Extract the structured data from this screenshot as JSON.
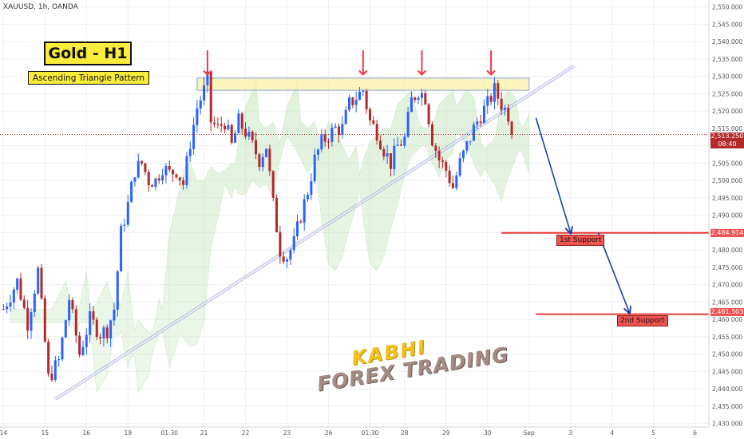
{
  "header": {
    "ticker": "XAUUSD, 1h, OANDA"
  },
  "annotations": {
    "title": "Gold - H1",
    "subtitle": "Ascending Triangle Pattern",
    "support1_label": "1st Support",
    "support2_label": "2nd Support",
    "watermark_line1": "KABHI",
    "watermark_line2": "FOREX TRADING"
  },
  "price_tags": {
    "current": "2,513.250",
    "countdown": "08:40",
    "support1": "2,484.914",
    "support2": "2,461.503"
  },
  "chart_data": {
    "type": "candlestick",
    "y_ticks": [
      "2,550.000",
      "2,545.000",
      "2,540.000",
      "2,535.000",
      "2,530.000",
      "2,525.000",
      "2,520.000",
      "2,515.000",
      "2,510.000",
      "2,505.000",
      "2,500.000",
      "2,495.000",
      "2,490.000",
      "2,485.000",
      "2,480.000",
      "2,475.000",
      "2,470.000",
      "2,465.000",
      "2,460.000",
      "2,455.000",
      "2,450.000",
      "2,445.000",
      "2,440.000",
      "2,435.000",
      "2,430.000"
    ],
    "y_values": [
      2550,
      2545,
      2540,
      2535,
      2530,
      2525,
      2520,
      2515,
      2510,
      2505,
      2500,
      2495,
      2490,
      2485,
      2480,
      2475,
      2470,
      2465,
      2460,
      2455,
      2450,
      2445,
      2440,
      2435,
      2430
    ],
    "ylim": [
      2429,
      2552
    ],
    "x_ticks": [
      {
        "label": "14",
        "i": 0
      },
      {
        "label": "15",
        "i": 12
      },
      {
        "label": "16",
        "i": 24
      },
      {
        "label": "19",
        "i": 36
      },
      {
        "label": "01:30",
        "i": 48
      },
      {
        "label": "21",
        "i": 58
      },
      {
        "label": "22",
        "i": 70
      },
      {
        "label": "23",
        "i": 82
      },
      {
        "label": "26",
        "i": 94
      },
      {
        "label": "01:30",
        "i": 106
      },
      {
        "label": "28",
        "i": 116
      },
      {
        "label": "29",
        "i": 128
      },
      {
        "label": "30",
        "i": 140
      },
      {
        "label": "Sep",
        "i": 152
      },
      {
        "label": "3",
        "i": 164
      },
      {
        "label": "4",
        "i": 176
      },
      {
        "label": "5",
        "i": 188
      },
      {
        "label": "6",
        "i": 200
      }
    ],
    "current_price": 2513.25,
    "resistance_zone": [
      2526,
      2529.5
    ],
    "trendline": [
      {
        "i": 15,
        "price": 2437
      },
      {
        "i": 165,
        "price": 2533
      }
    ],
    "supports": [
      {
        "price": 2484.914,
        "from_i": 144
      },
      {
        "price": 2461.503,
        "from_i": 154
      }
    ],
    "top_arrows_i": [
      59,
      104,
      121,
      141
    ],
    "projection_path": [
      {
        "i": 154,
        "price": 2518
      },
      {
        "i": 164,
        "price": 2485
      },
      {
        "i": 172,
        "price": 2485
      },
      {
        "i": 181,
        "price": 2462
      }
    ],
    "close_path": [
      [
        0,
        2463
      ],
      [
        4,
        2471
      ],
      [
        7,
        2459
      ],
      [
        10,
        2474
      ],
      [
        13,
        2443
      ],
      [
        16,
        2448
      ],
      [
        19,
        2466
      ],
      [
        22,
        2450
      ],
      [
        25,
        2460
      ],
      [
        28,
        2456
      ],
      [
        30,
        2457
      ],
      [
        32,
        2463
      ],
      [
        34,
        2485
      ],
      [
        36,
        2493
      ],
      [
        38,
        2503
      ],
      [
        40,
        2505
      ],
      [
        42,
        2500
      ],
      [
        44,
        2500
      ],
      [
        46,
        2504
      ],
      [
        48,
        2502
      ],
      [
        50,
        2503
      ],
      [
        52,
        2499
      ],
      [
        54,
        2511
      ],
      [
        56,
        2521
      ],
      [
        58,
        2526
      ],
      [
        59,
        2529
      ],
      [
        60,
        2517
      ],
      [
        62,
        2515
      ],
      [
        64,
        2517
      ],
      [
        66,
        2510
      ],
      [
        68,
        2517
      ],
      [
        70,
        2514
      ],
      [
        72,
        2510
      ],
      [
        74,
        2506
      ],
      [
        76,
        2510
      ],
      [
        78,
        2493
      ],
      [
        80,
        2480
      ],
      [
        82,
        2478
      ],
      [
        84,
        2482
      ],
      [
        86,
        2490
      ],
      [
        88,
        2497
      ],
      [
        90,
        2506
      ],
      [
        92,
        2511
      ],
      [
        94,
        2513
      ],
      [
        96,
        2515
      ],
      [
        98,
        2515
      ],
      [
        100,
        2522
      ],
      [
        102,
        2524
      ],
      [
        104,
        2526
      ],
      [
        106,
        2517
      ],
      [
        108,
        2514
      ],
      [
        110,
        2509
      ],
      [
        112,
        2505
      ],
      [
        114,
        2510
      ],
      [
        116,
        2512
      ],
      [
        118,
        2523
      ],
      [
        120,
        2526
      ],
      [
        122,
        2524
      ],
      [
        124,
        2512
      ],
      [
        126,
        2506
      ],
      [
        128,
        2503
      ],
      [
        130,
        2498
      ],
      [
        132,
        2505
      ],
      [
        134,
        2510
      ],
      [
        136,
        2515
      ],
      [
        138,
        2519
      ],
      [
        140,
        2522
      ],
      [
        142,
        2526
      ],
      [
        144,
        2522
      ],
      [
        146,
        2519
      ],
      [
        147,
        2513.25
      ]
    ]
  }
}
